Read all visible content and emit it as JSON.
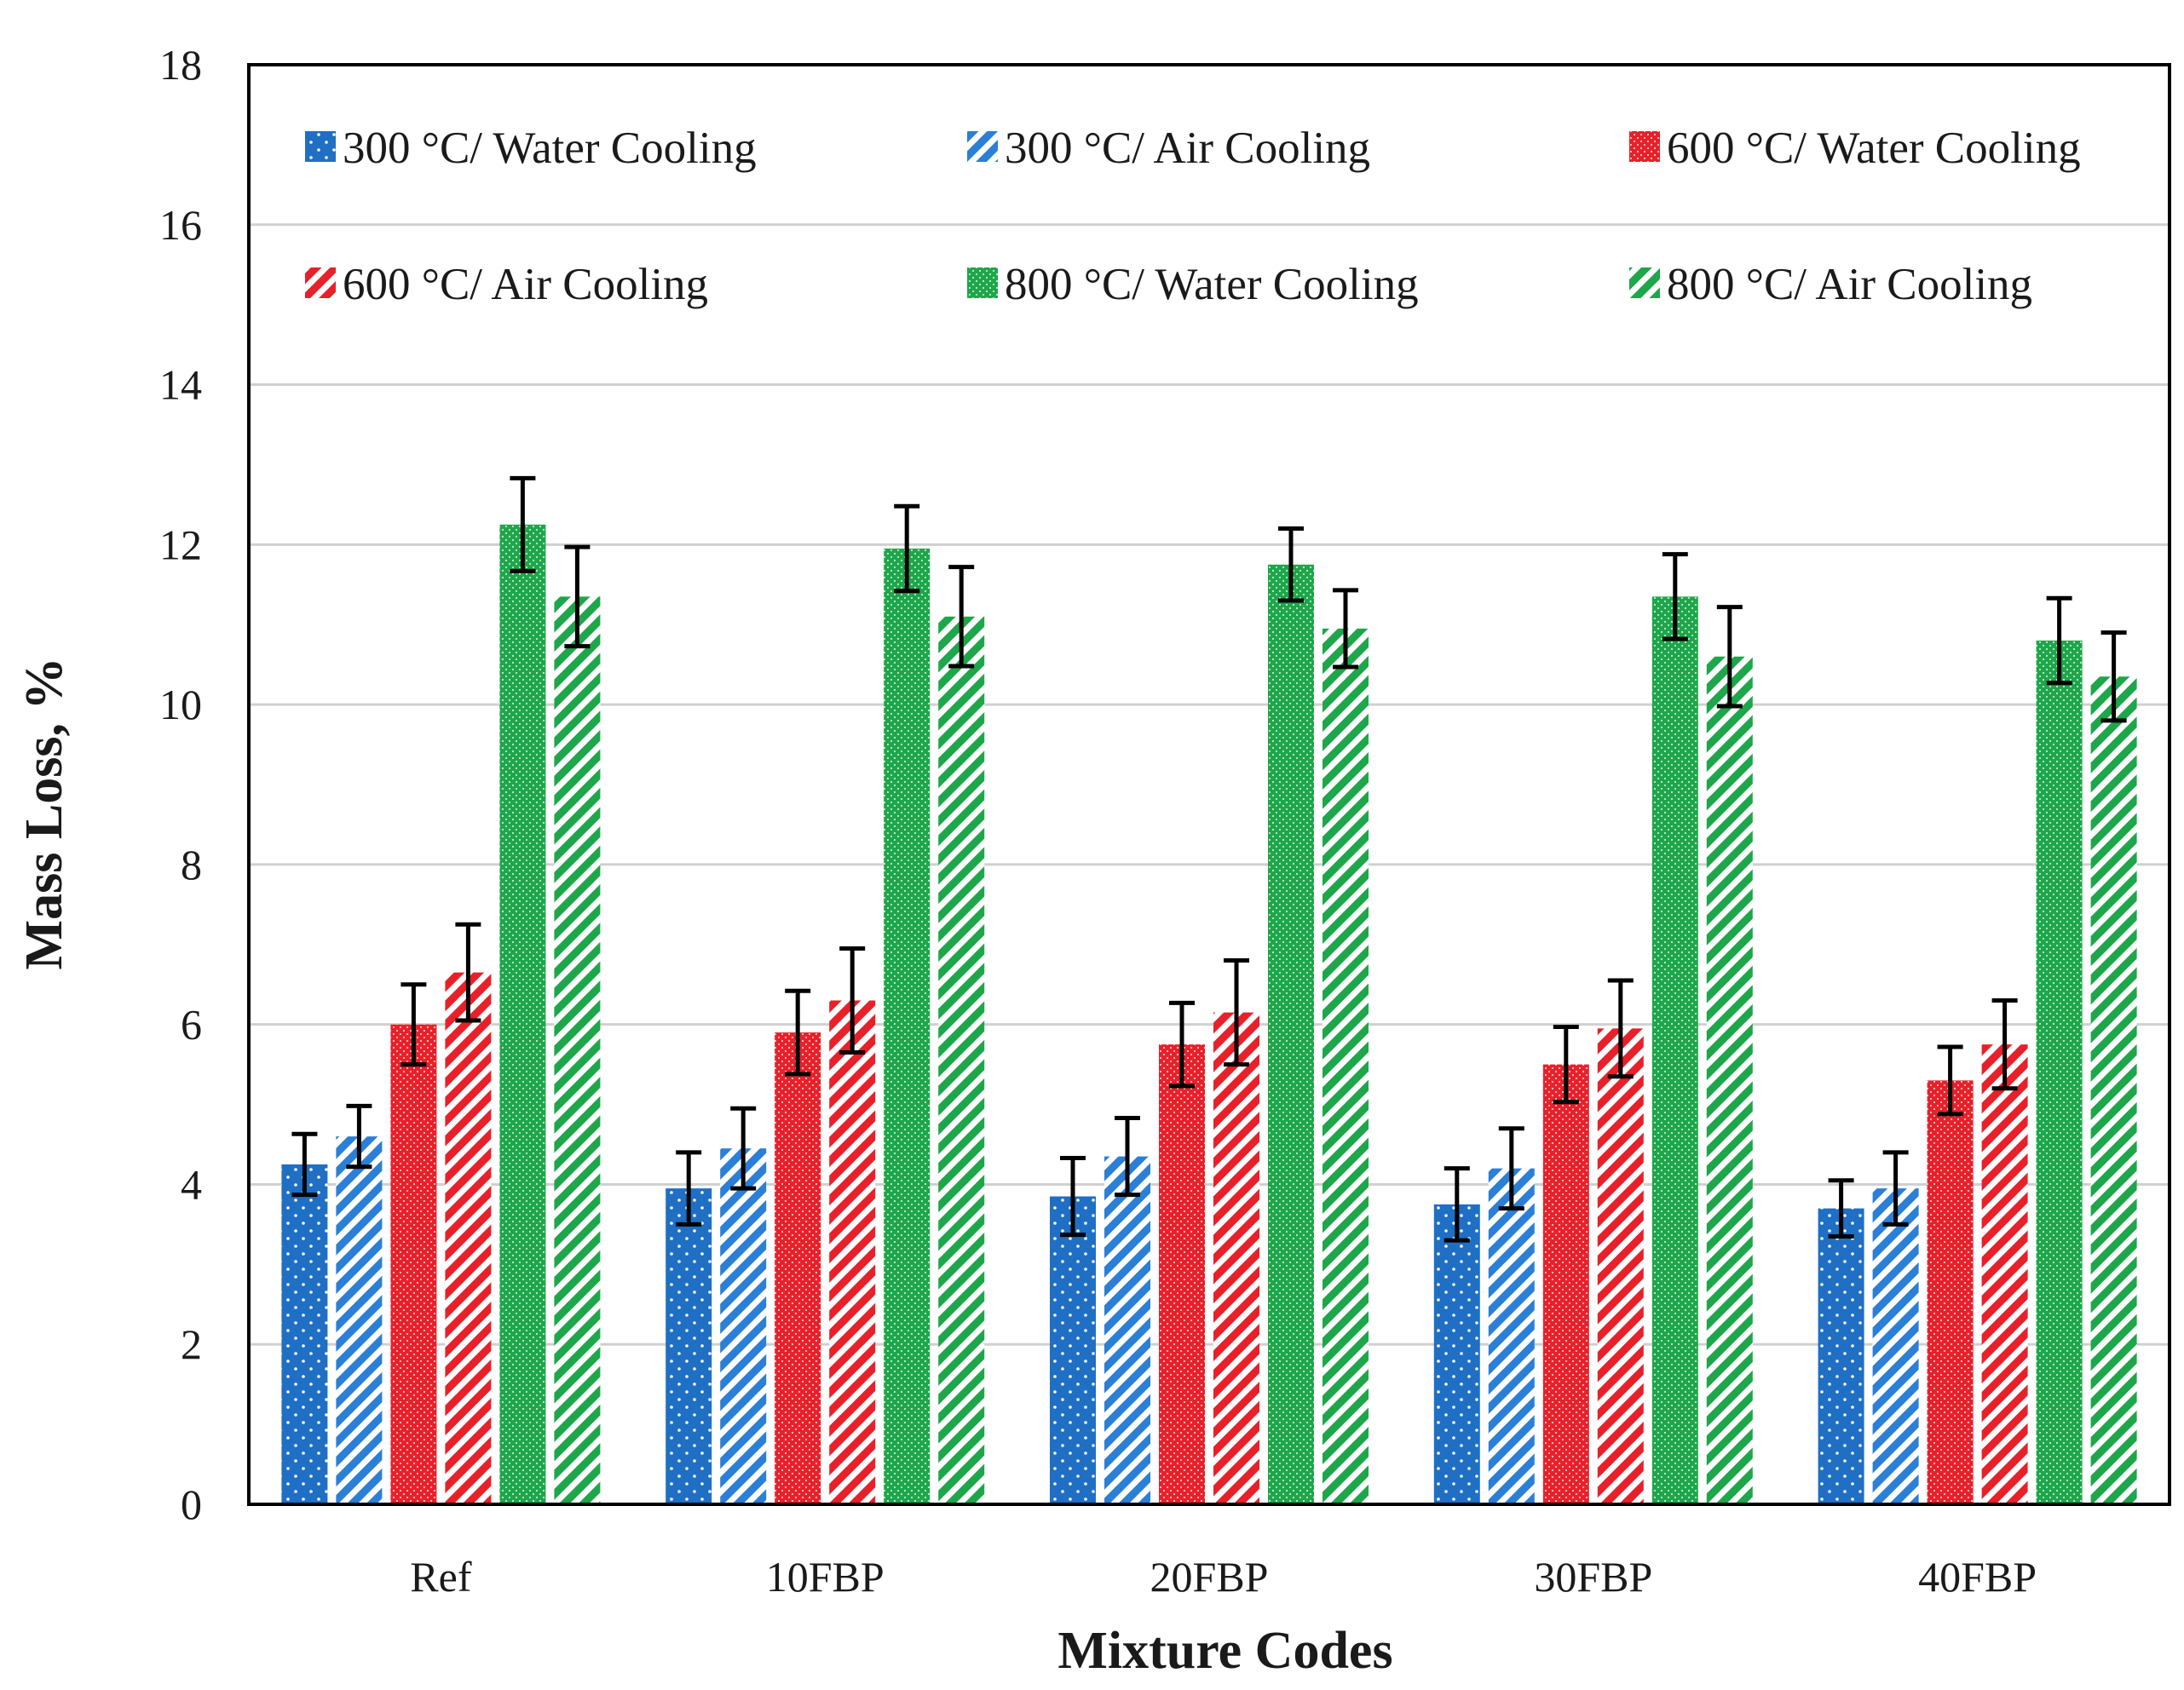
{
  "chart_data": {
    "type": "bar",
    "title": "",
    "xlabel": "Mixture Codes",
    "ylabel": "Mass Loss, %",
    "ylim": [
      0,
      18
    ],
    "yticks": [
      "0",
      "2",
      "4",
      "6",
      "8",
      "10",
      "12",
      "14",
      "16",
      "18"
    ],
    "grid": true,
    "legend_position": "top, inside plot, 3 columns",
    "categories": [
      "Ref",
      "10FBP",
      "20FBP",
      "30FBP",
      "40FBP"
    ],
    "series": [
      {
        "name": "300 °C/ Water Cooling",
        "color": "#1f6fc4",
        "pattern": "dots",
        "values": [
          4.25,
          3.95,
          3.85,
          3.75,
          3.7
        ],
        "errors": [
          0.38,
          0.45,
          0.48,
          0.45,
          0.35
        ]
      },
      {
        "name": "300 °C/ Air Cooling",
        "color": "#2b7fd6",
        "pattern": "diagonal",
        "values": [
          4.6,
          4.45,
          4.35,
          4.2,
          3.95
        ],
        "errors": [
          0.38,
          0.5,
          0.48,
          0.5,
          0.45
        ]
      },
      {
        "name": "600 °C/ Water Cooling",
        "color": "#e8202a",
        "pattern": "dense-dots",
        "values": [
          6.0,
          5.9,
          5.75,
          5.5,
          5.3
        ],
        "errors": [
          0.5,
          0.52,
          0.52,
          0.47,
          0.42
        ]
      },
      {
        "name": "600 °C/ Air Cooling",
        "color": "#e8202a",
        "pattern": "diagonal",
        "values": [
          6.65,
          6.3,
          6.15,
          5.95,
          5.75
        ],
        "errors": [
          0.6,
          0.65,
          0.65,
          0.6,
          0.55
        ]
      },
      {
        "name": "800 °C/ Water Cooling",
        "color": "#1ea64a",
        "pattern": "dense-dots",
        "values": [
          12.25,
          11.95,
          11.75,
          11.35,
          10.8
        ],
        "errors": [
          0.58,
          0.53,
          0.45,
          0.53,
          0.53
        ]
      },
      {
        "name": "800 °C/ Air Cooling",
        "color": "#1ea64a",
        "pattern": "diagonal",
        "values": [
          11.35,
          11.1,
          10.95,
          10.6,
          10.35
        ],
        "errors": [
          0.62,
          0.62,
          0.48,
          0.62,
          0.55
        ]
      }
    ]
  }
}
